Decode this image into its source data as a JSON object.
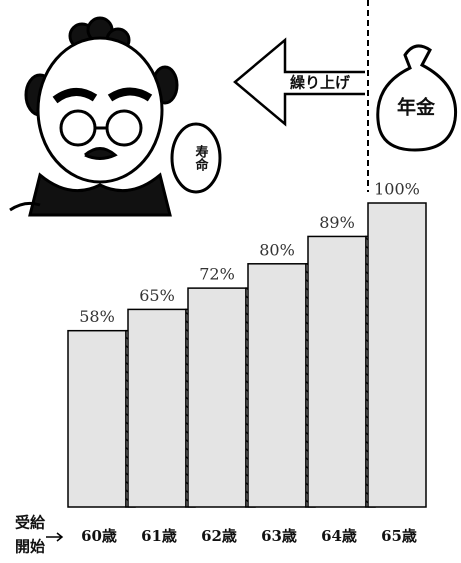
{
  "chart_data": {
    "type": "bar",
    "categories": [
      "60歳",
      "61歳",
      "62歳",
      "63歳",
      "64歳",
      "65歳"
    ],
    "values": [
      58,
      65,
      72,
      80,
      89,
      100
    ],
    "value_labels": [
      "58%",
      "65%",
      "72%",
      "80%",
      "89%",
      "100%"
    ],
    "x_label": [
      "受給",
      "開始"
    ],
    "annotations": {
      "arrow": "繰り上げ",
      "bag": "年金",
      "bubble": "寿命"
    },
    "color": "#e4e4e4"
  }
}
